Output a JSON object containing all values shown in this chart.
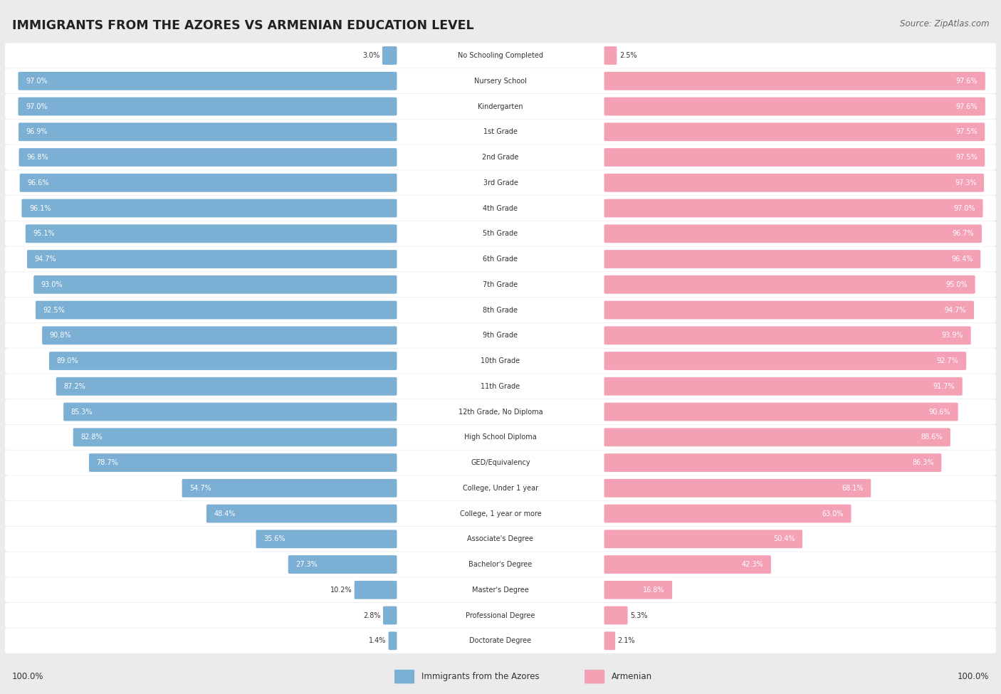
{
  "title": "IMMIGRANTS FROM THE AZORES VS ARMENIAN EDUCATION LEVEL",
  "source": "Source: ZipAtlas.com",
  "categories": [
    "No Schooling Completed",
    "Nursery School",
    "Kindergarten",
    "1st Grade",
    "2nd Grade",
    "3rd Grade",
    "4th Grade",
    "5th Grade",
    "6th Grade",
    "7th Grade",
    "8th Grade",
    "9th Grade",
    "10th Grade",
    "11th Grade",
    "12th Grade, No Diploma",
    "High School Diploma",
    "GED/Equivalency",
    "College, Under 1 year",
    "College, 1 year or more",
    "Associate's Degree",
    "Bachelor's Degree",
    "Master's Degree",
    "Professional Degree",
    "Doctorate Degree"
  ],
  "azores": [
    3.0,
    97.0,
    97.0,
    96.9,
    96.8,
    96.6,
    96.1,
    95.1,
    94.7,
    93.0,
    92.5,
    90.8,
    89.0,
    87.2,
    85.3,
    82.8,
    78.7,
    54.7,
    48.4,
    35.6,
    27.3,
    10.2,
    2.8,
    1.4
  ],
  "armenian": [
    2.5,
    97.6,
    97.6,
    97.5,
    97.5,
    97.3,
    97.0,
    96.7,
    96.4,
    95.0,
    94.7,
    93.9,
    92.7,
    91.7,
    90.6,
    88.6,
    86.3,
    68.1,
    63.0,
    50.4,
    42.3,
    16.8,
    5.3,
    2.1
  ],
  "azores_color": "#7bafd4",
  "armenian_color": "#f4a0b5",
  "background_color": "#ebebeb",
  "row_bg_color": "#ffffff",
  "legend_azores": "Immigrants from the Azores",
  "legend_armenian": "Armenian",
  "left_label": "100.0%",
  "right_label": "100.0%"
}
